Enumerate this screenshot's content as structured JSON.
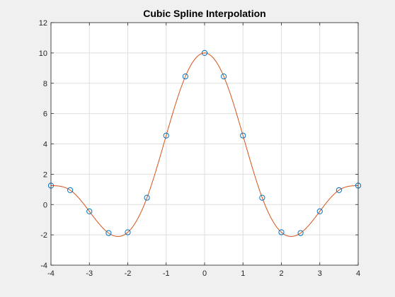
{
  "colors": {
    "figure_background": "#f0f0f0",
    "axes_background": "#ffffff",
    "axes_edge": "#262626",
    "grid": "#dfdfdf",
    "markers": "#0072bd",
    "spline": "#d95319"
  },
  "chart_data": {
    "type": "line",
    "title": "Cubic Spline Interpolation",
    "xlabel": "",
    "ylabel": "",
    "xlim": [
      -4,
      4
    ],
    "ylim": [
      -4,
      12
    ],
    "xticks": [
      -4,
      -3,
      -2,
      -1,
      0,
      1,
      2,
      3,
      4
    ],
    "yticks": [
      -4,
      -2,
      0,
      2,
      4,
      6,
      8,
      10,
      12
    ],
    "grid": true,
    "legend": "none",
    "series": [
      {
        "style": "markers",
        "marker": "circle",
        "x": [
          -4,
          -3.5,
          -3,
          -2.5,
          -2,
          -1.5,
          -1,
          -0.5,
          0,
          0.5,
          1,
          1.5,
          2,
          2.5,
          3,
          3.5,
          4
        ],
        "y": [
          1.25,
          0.95,
          -0.45,
          -1.88,
          -1.83,
          0.45,
          4.55,
          8.45,
          10.0,
          8.45,
          4.55,
          0.45,
          -1.83,
          -1.88,
          -0.45,
          0.95,
          1.25
        ]
      },
      {
        "style": "line",
        "interpolation": "cubic spline of the marker points"
      }
    ]
  }
}
